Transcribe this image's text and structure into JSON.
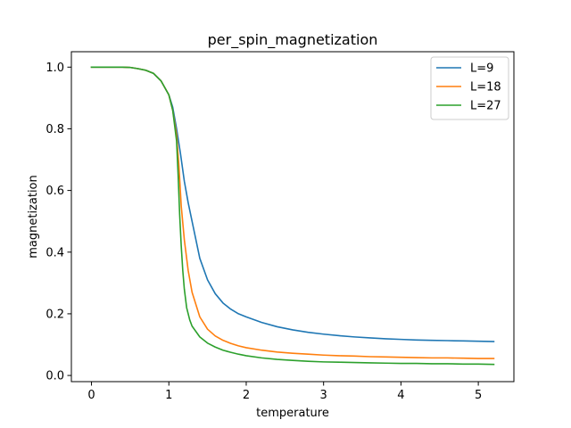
{
  "chart_data": {
    "type": "line",
    "title": "per_spin_magnetization",
    "xlabel": "temperature",
    "ylabel": "magnetization",
    "xlim": [
      -0.26,
      5.46
    ],
    "ylim": [
      -0.02,
      1.05
    ],
    "xticks": [
      0,
      1,
      2,
      3,
      4,
      5
    ],
    "yticks": [
      0.0,
      0.2,
      0.4,
      0.6,
      0.8,
      1.0
    ],
    "xtick_labels": [
      "0",
      "1",
      "2",
      "3",
      "4",
      "5"
    ],
    "ytick_labels": [
      "0.0",
      "0.2",
      "0.4",
      "0.6",
      "0.8",
      "1.0"
    ],
    "grid": false,
    "legend": "top-right",
    "series": [
      {
        "name": "L=9",
        "color": "#1f77b4",
        "x": [
          0,
          0.2,
          0.4,
          0.5,
          0.6,
          0.7,
          0.8,
          0.9,
          1.0,
          1.05,
          1.1,
          1.15,
          1.2,
          1.25,
          1.3,
          1.4,
          1.5,
          1.6,
          1.7,
          1.8,
          1.9,
          2.0,
          2.2,
          2.4,
          2.6,
          2.8,
          3.0,
          3.2,
          3.4,
          3.6,
          3.8,
          4.0,
          4.2,
          4.4,
          4.6,
          4.8,
          5.0,
          5.2
        ],
        "values": [
          1.0,
          1.0,
          1.0,
          0.999,
          0.995,
          0.99,
          0.98,
          0.955,
          0.91,
          0.87,
          0.8,
          0.72,
          0.63,
          0.56,
          0.5,
          0.38,
          0.31,
          0.265,
          0.235,
          0.215,
          0.2,
          0.19,
          0.172,
          0.158,
          0.148,
          0.14,
          0.134,
          0.129,
          0.125,
          0.122,
          0.119,
          0.117,
          0.115,
          0.114,
          0.113,
          0.112,
          0.111,
          0.11
        ]
      },
      {
        "name": "L=18",
        "color": "#ff7f0e",
        "x": [
          0,
          0.2,
          0.4,
          0.5,
          0.6,
          0.7,
          0.8,
          0.9,
          1.0,
          1.05,
          1.1,
          1.13,
          1.16,
          1.2,
          1.25,
          1.3,
          1.4,
          1.5,
          1.6,
          1.7,
          1.8,
          1.9,
          2.0,
          2.2,
          2.4,
          2.6,
          2.8,
          3.0,
          3.2,
          3.4,
          3.6,
          3.8,
          4.0,
          4.2,
          4.4,
          4.6,
          4.8,
          5.0,
          5.2
        ],
        "values": [
          1.0,
          1.0,
          1.0,
          0.999,
          0.995,
          0.99,
          0.98,
          0.955,
          0.91,
          0.86,
          0.78,
          0.68,
          0.55,
          0.44,
          0.34,
          0.27,
          0.19,
          0.15,
          0.128,
          0.114,
          0.104,
          0.096,
          0.09,
          0.082,
          0.076,
          0.072,
          0.069,
          0.066,
          0.064,
          0.063,
          0.061,
          0.06,
          0.059,
          0.058,
          0.057,
          0.057,
          0.056,
          0.055,
          0.055
        ]
      },
      {
        "name": "L=27",
        "color": "#2ca02c",
        "x": [
          0,
          0.2,
          0.4,
          0.5,
          0.6,
          0.7,
          0.8,
          0.9,
          1.0,
          1.05,
          1.1,
          1.12,
          1.14,
          1.16,
          1.18,
          1.2,
          1.23,
          1.27,
          1.3,
          1.4,
          1.5,
          1.6,
          1.7,
          1.8,
          1.9,
          2.0,
          2.2,
          2.4,
          2.6,
          2.8,
          3.0,
          3.2,
          3.4,
          3.6,
          3.8,
          4.0,
          4.2,
          4.4,
          4.6,
          4.8,
          5.0,
          5.2
        ],
        "values": [
          1.0,
          1.0,
          1.0,
          0.999,
          0.995,
          0.99,
          0.98,
          0.955,
          0.91,
          0.86,
          0.76,
          0.65,
          0.52,
          0.42,
          0.34,
          0.28,
          0.22,
          0.18,
          0.16,
          0.125,
          0.105,
          0.092,
          0.082,
          0.075,
          0.069,
          0.064,
          0.057,
          0.052,
          0.049,
          0.046,
          0.044,
          0.043,
          0.042,
          0.041,
          0.04,
          0.039,
          0.039,
          0.038,
          0.038,
          0.037,
          0.037,
          0.036
        ]
      }
    ]
  }
}
